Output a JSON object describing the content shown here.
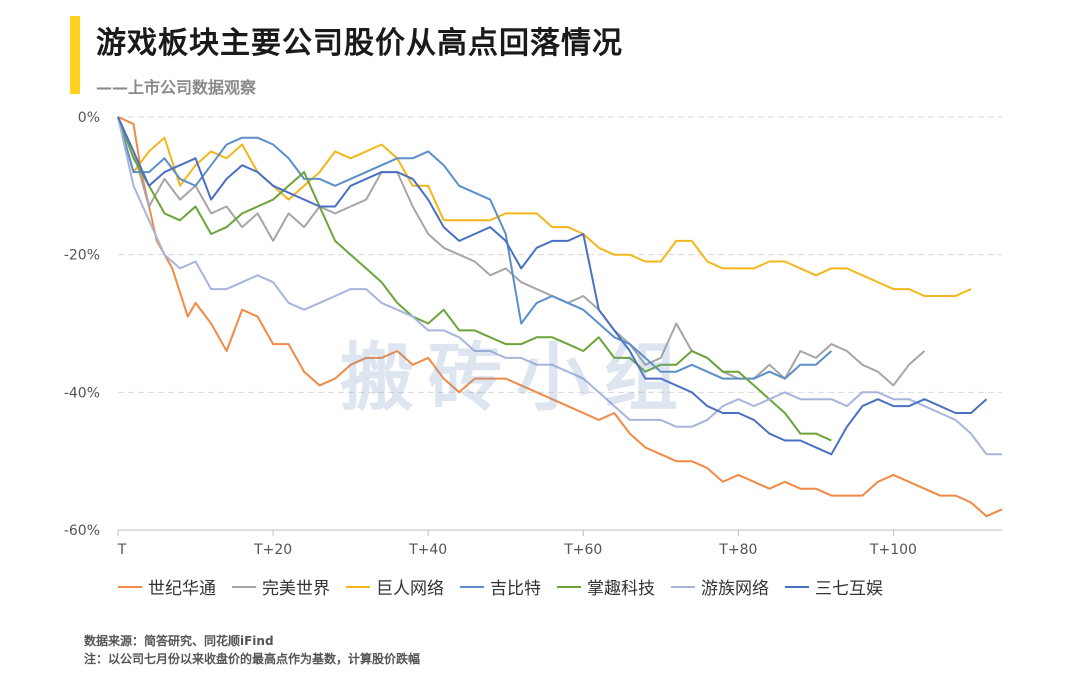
{
  "header": {
    "title": "游戏板块主要公司股价从高点回落情况",
    "subtitle": "——上市公司数据观察"
  },
  "watermark": "搬砖小组",
  "footer": {
    "source": "数据来源：简答研究、同花顺iFind",
    "note": "注：以公司七月份以来收盘价的最高点作为基数，计算股价跌幅"
  },
  "colors": {
    "accent": "#FFD21F"
  },
  "chart_data": {
    "type": "line",
    "x_tick_labels": [
      "T",
      "T+20",
      "T+40",
      "T+60",
      "T+80",
      "T+100"
    ],
    "x_tick_values": [
      0,
      20,
      40,
      60,
      80,
      100
    ],
    "xlim": [
      0,
      114
    ],
    "y_tick_labels": [
      "0%",
      "-20%",
      "-40%",
      "-60%"
    ],
    "y_tick_values": [
      0,
      -20,
      -40,
      -60
    ],
    "ylim": [
      -60,
      0
    ],
    "grid": "horizontal dashed",
    "legend_position": "bottom",
    "series": [
      {
        "name": "世纪华通",
        "color": "#F08A45",
        "x": [
          0,
          2,
          3,
          5,
          7,
          9,
          10,
          12,
          14,
          16,
          18,
          20,
          22,
          24,
          26,
          28,
          30,
          32,
          34,
          36,
          38,
          40,
          42,
          44,
          46,
          48,
          50,
          52,
          54,
          56,
          58,
          60,
          62,
          64,
          66,
          68,
          70,
          72,
          74,
          76,
          78,
          80,
          82,
          84,
          86,
          88,
          90,
          92,
          94,
          96,
          98,
          100,
          102,
          104,
          106,
          108,
          110,
          112,
          114
        ],
        "y": [
          0,
          -1,
          -8,
          -18,
          -22,
          -29,
          -27,
          -30,
          -34,
          -28,
          -29,
          -33,
          -33,
          -37,
          -39,
          -38,
          -36,
          -35,
          -35,
          -34,
          -36,
          -35,
          -38,
          -40,
          -38,
          -38,
          -38,
          -39,
          -40,
          -41,
          -42,
          -43,
          -44,
          -43,
          -46,
          -48,
          -49,
          -50,
          -50,
          -51,
          -53,
          -52,
          -53,
          -54,
          -53,
          -54,
          -54,
          -55,
          -55,
          -55,
          -53,
          -52,
          -53,
          -54,
          -55,
          -55,
          -56,
          -58,
          -57
        ]
      },
      {
        "name": "完美世界",
        "color": "#A6A6A6",
        "x": [
          0,
          2,
          4,
          6,
          8,
          10,
          12,
          14,
          16,
          18,
          20,
          22,
          24,
          26,
          28,
          30,
          32,
          34,
          36,
          38,
          40,
          42,
          44,
          46,
          48,
          50,
          52,
          54,
          56,
          58,
          60,
          62,
          64,
          66,
          68,
          70,
          72,
          74,
          76,
          78,
          80,
          82,
          84,
          86,
          88,
          90,
          92,
          94,
          96,
          98,
          100,
          102,
          104
        ],
        "y": [
          0,
          -5,
          -13,
          -9,
          -12,
          -10,
          -14,
          -13,
          -16,
          -14,
          -18,
          -14,
          -16,
          -13,
          -14,
          -13,
          -12,
          -8,
          -8,
          -13,
          -17,
          -19,
          -20,
          -21,
          -23,
          -22,
          -24,
          -25,
          -26,
          -27,
          -26,
          -28,
          -31,
          -33,
          -36,
          -35,
          -30,
          -34,
          -35,
          -37,
          -38,
          -38,
          -36,
          -38,
          -34,
          -35,
          -33,
          -34,
          -36,
          -37,
          -39,
          -36,
          -34
        ]
      },
      {
        "name": "巨人网络",
        "color": "#F2B71A",
        "x": [
          0,
          2,
          4,
          6,
          8,
          10,
          12,
          14,
          16,
          18,
          20,
          22,
          24,
          26,
          28,
          30,
          32,
          34,
          36,
          38,
          40,
          42,
          44,
          46,
          48,
          50,
          52,
          54,
          56,
          58,
          60,
          62,
          64,
          66,
          68,
          70,
          72,
          74,
          76,
          78,
          80,
          82,
          84,
          86,
          88,
          90,
          92,
          94,
          96,
          98,
          100,
          102,
          104,
          106,
          108,
          110
        ],
        "y": [
          0,
          -8,
          -5,
          -3,
          -10,
          -7,
          -5,
          -6,
          -4,
          -8,
          -10,
          -12,
          -10,
          -8,
          -5,
          -6,
          -5,
          -4,
          -6,
          -10,
          -10,
          -15,
          -15,
          -15,
          -15,
          -14,
          -14,
          -14,
          -16,
          -16,
          -17,
          -19,
          -20,
          -20,
          -21,
          -21,
          -18,
          -18,
          -21,
          -22,
          -22,
          -22,
          -21,
          -21,
          -22,
          -23,
          -22,
          -22,
          -23,
          -24,
          -25,
          -25,
          -26,
          -26,
          -26,
          -25
        ]
      },
      {
        "name": "吉比特",
        "color": "#5B8FC9",
        "x": [
          0,
          2,
          4,
          6,
          8,
          10,
          12,
          14,
          16,
          18,
          20,
          22,
          24,
          26,
          28,
          30,
          32,
          34,
          36,
          38,
          40,
          42,
          44,
          46,
          48,
          50,
          52,
          54,
          56,
          58,
          60,
          62,
          64,
          66,
          68,
          70,
          72,
          74,
          76,
          78,
          80,
          82,
          84,
          86,
          88,
          90,
          92
        ],
        "y": [
          0,
          -8,
          -8,
          -6,
          -9,
          -10,
          -7,
          -4,
          -3,
          -3,
          -4,
          -6,
          -9,
          -9,
          -10,
          -9,
          -8,
          -7,
          -6,
          -6,
          -5,
          -7,
          -10,
          -11,
          -12,
          -17,
          -30,
          -27,
          -26,
          -27,
          -28,
          -30,
          -32,
          -33,
          -35,
          -37,
          -37,
          -36,
          -37,
          -38,
          -38,
          -38,
          -37,
          -38,
          -36,
          -36,
          -34
        ]
      },
      {
        "name": "掌趣科技",
        "color": "#6BA43A",
        "x": [
          0,
          2,
          4,
          6,
          8,
          10,
          12,
          14,
          16,
          18,
          20,
          22,
          24,
          26,
          28,
          30,
          32,
          34,
          36,
          38,
          40,
          42,
          44,
          46,
          48,
          50,
          52,
          54,
          56,
          58,
          60,
          62,
          64,
          66,
          68,
          70,
          72,
          74,
          76,
          78,
          80,
          82,
          84,
          86,
          88,
          90,
          92
        ],
        "y": [
          0,
          -6,
          -10,
          -14,
          -15,
          -13,
          -17,
          -16,
          -14,
          -13,
          -12,
          -10,
          -8,
          -13,
          -18,
          -20,
          -22,
          -24,
          -27,
          -29,
          -30,
          -28,
          -31,
          -31,
          -32,
          -33,
          -33,
          -32,
          -32,
          -33,
          -34,
          -32,
          -35,
          -35,
          -37,
          -36,
          -36,
          -34,
          -35,
          -37,
          -37,
          -39,
          -41,
          -43,
          -46,
          -46,
          -47
        ]
      },
      {
        "name": "游族网络",
        "color": "#A7B5DD",
        "x": [
          0,
          2,
          4,
          6,
          8,
          10,
          12,
          14,
          16,
          18,
          20,
          22,
          24,
          26,
          28,
          30,
          32,
          34,
          36,
          38,
          40,
          42,
          44,
          46,
          48,
          50,
          52,
          54,
          56,
          58,
          60,
          62,
          64,
          66,
          68,
          70,
          72,
          74,
          76,
          78,
          80,
          82,
          84,
          86,
          88,
          90,
          92,
          94,
          96,
          98,
          100,
          102,
          104,
          106,
          108,
          110,
          112,
          114
        ],
        "y": [
          0,
          -10,
          -15,
          -20,
          -22,
          -21,
          -25,
          -25,
          -24,
          -23,
          -24,
          -27,
          -28,
          -27,
          -26,
          -25,
          -25,
          -27,
          -28,
          -29,
          -31,
          -31,
          -32,
          -34,
          -34,
          -35,
          -35,
          -36,
          -36,
          -37,
          -38,
          -40,
          -42,
          -44,
          -44,
          -44,
          -45,
          -45,
          -44,
          -42,
          -41,
          -42,
          -41,
          -40,
          -41,
          -41,
          -41,
          -42,
          -40,
          -40,
          -41,
          -41,
          -42,
          -43,
          -44,
          -46,
          -49,
          -49
        ]
      },
      {
        "name": "三七互娱",
        "color": "#4A70C4",
        "x": [
          0,
          2,
          4,
          6,
          8,
          10,
          12,
          14,
          16,
          18,
          20,
          22,
          24,
          26,
          28,
          30,
          32,
          34,
          36,
          38,
          40,
          42,
          44,
          46,
          48,
          50,
          52,
          54,
          56,
          58,
          60,
          62,
          64,
          66,
          68,
          70,
          72,
          74,
          76,
          78,
          80,
          82,
          84,
          86,
          88,
          90,
          92,
          94,
          96,
          98,
          100,
          102,
          104,
          106,
          108,
          110,
          112
        ],
        "y": [
          0,
          -5,
          -10,
          -8,
          -7,
          -6,
          -12,
          -9,
          -7,
          -8,
          -10,
          -11,
          -12,
          -13,
          -13,
          -10,
          -9,
          -8,
          -8,
          -9,
          -12,
          -16,
          -18,
          -17,
          -16,
          -18,
          -22,
          -19,
          -18,
          -18,
          -17,
          -28,
          -31,
          -34,
          -38,
          -38,
          -39,
          -40,
          -42,
          -43,
          -43,
          -44,
          -46,
          -47,
          -47,
          -48,
          -49,
          -45,
          -42,
          -41,
          -42,
          -42,
          -41,
          -42,
          -43,
          -43,
          -41
        ]
      }
    ]
  }
}
